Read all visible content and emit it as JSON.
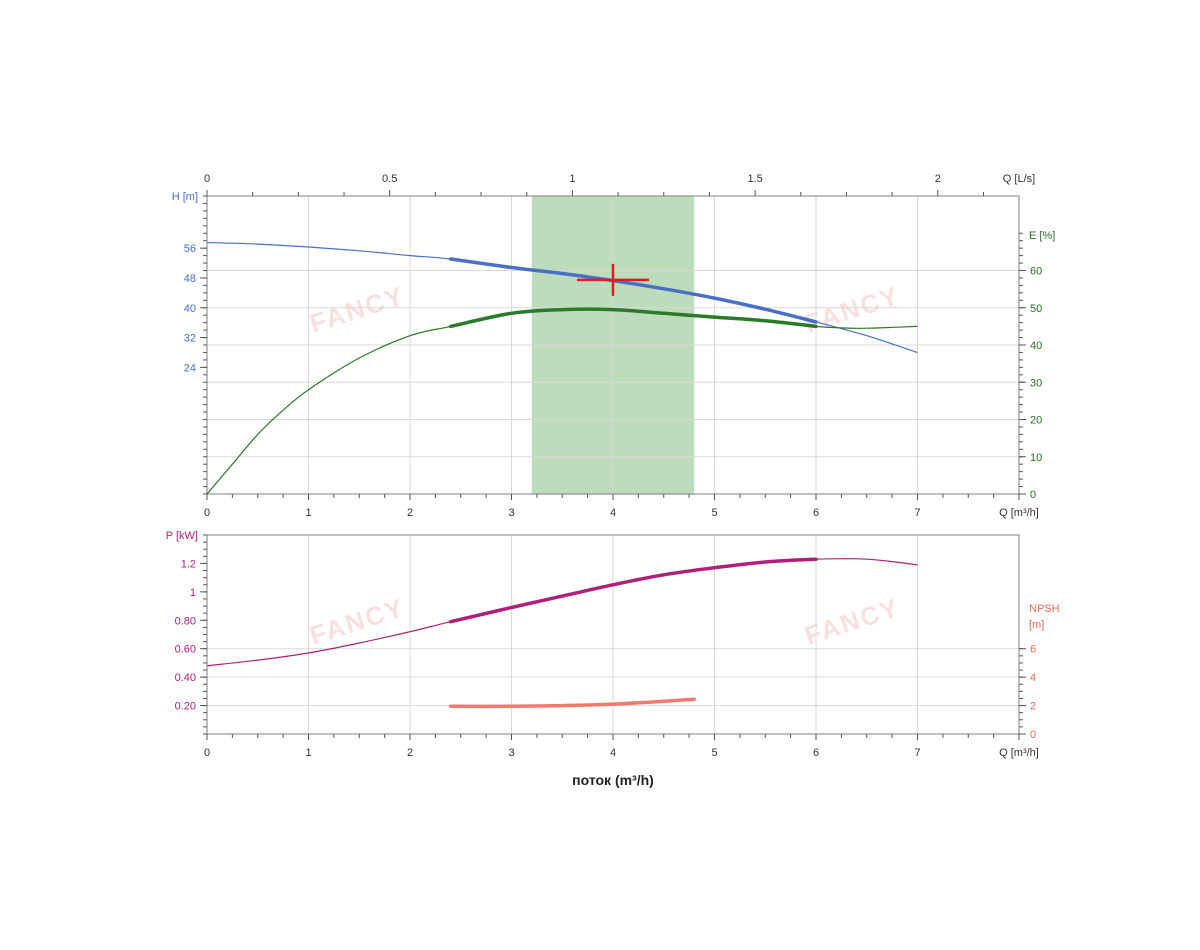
{
  "chart_data": [
    {
      "type": "line",
      "name": "head-efficiency",
      "x_axis": {
        "label": "Q [m³/h]",
        "range": [
          0,
          8
        ],
        "ticks": [
          0,
          1,
          2,
          3,
          4,
          5,
          6,
          7
        ]
      },
      "x2_axis": {
        "label": "Q [L/s]",
        "range": [
          0,
          2.2222
        ],
        "ticks": [
          0,
          0.5,
          1,
          1.5,
          2
        ],
        "tick_labels": [
          "0",
          "0.5",
          "1",
          "1.5",
          "2"
        ]
      },
      "y_axis": {
        "label": "H [m]",
        "range": [
          -10,
          70
        ],
        "ticks": [
          24,
          32,
          40,
          48,
          56
        ]
      },
      "y2_axis": {
        "label": "E [%]",
        "range": [
          0,
          80
        ],
        "ticks": [
          0,
          10,
          20,
          30,
          40,
          50,
          60
        ]
      },
      "highlight_band": {
        "x_range": [
          3.2,
          4.8
        ],
        "color": "#bcdcbc"
      },
      "operating_point": {
        "x": 4.0,
        "y": 47.5,
        "color": "#e31b1b"
      },
      "series": [
        {
          "axis": "left",
          "color": "#4a6fc7",
          "x": [
            0,
            0.5,
            1,
            1.5,
            2,
            2.4,
            3,
            3.5,
            4,
            4.5,
            5,
            5.5,
            6,
            6.5,
            7
          ],
          "y": [
            57.5,
            57.1,
            56.3,
            55.3,
            54.0,
            53.1,
            50.8,
            49.2,
            47.3,
            45.1,
            42.6,
            39.6,
            36.2,
            32.5,
            28.0
          ],
          "bold_range": [
            2.4,
            6.0
          ]
        },
        {
          "axis": "right",
          "color": "#2a7a2a",
          "x": [
            0,
            0.25,
            0.5,
            0.75,
            1,
            1.5,
            2,
            2.4,
            3,
            3.5,
            4,
            4.5,
            5,
            5.5,
            6,
            6.25,
            6.5,
            7
          ],
          "y": [
            0,
            8,
            16,
            22.5,
            28,
            36.5,
            42.5,
            45,
            48.5,
            49.5,
            49.5,
            48.5,
            47.5,
            46.5,
            45,
            44.6,
            44.5,
            45
          ],
          "bold_range": [
            2.4,
            6.0
          ]
        }
      ]
    },
    {
      "type": "line",
      "name": "power-npsh",
      "x_axis": {
        "label": "Q [m³/h]",
        "range": [
          0,
          8
        ],
        "ticks": [
          0,
          1,
          2,
          3,
          4,
          5,
          6,
          7
        ]
      },
      "xlabel": "поток (m³/h)",
      "y_axis": {
        "label": "P [kW]",
        "range": [
          0,
          1.4
        ],
        "ticks": [
          0.2,
          0.4,
          0.6,
          0.8,
          1.0,
          1.2
        ],
        "tick_labels": [
          "0.20",
          "0.40",
          "0.60",
          "0.80",
          "1",
          "1.2"
        ]
      },
      "y2_axis": {
        "label_line1": "NPSH",
        "label_line2": "[m]",
        "range": [
          0,
          14
        ],
        "ticks": [
          0,
          2,
          4,
          6
        ]
      },
      "series": [
        {
          "axis": "left",
          "color": "#b0207a",
          "x": [
            0,
            0.5,
            1,
            1.5,
            2,
            2.4,
            3,
            3.5,
            4,
            4.5,
            5,
            5.5,
            6,
            6.5,
            7
          ],
          "y": [
            0.48,
            0.52,
            0.57,
            0.64,
            0.72,
            0.79,
            0.89,
            0.97,
            1.05,
            1.12,
            1.17,
            1.21,
            1.23,
            1.23,
            1.19
          ],
          "bold_range": [
            2.4,
            6.0
          ]
        },
        {
          "axis": "right",
          "color": "#ee7b6e",
          "x": [
            2.4,
            3,
            3.5,
            4,
            4.5,
            4.8
          ],
          "y": [
            1.95,
            1.95,
            2.0,
            2.1,
            2.3,
            2.45
          ],
          "bold_range": [
            2.4,
            4.8
          ]
        }
      ]
    }
  ],
  "watermark": {
    "text": "FANCY",
    "color": "#f0c8c8"
  }
}
